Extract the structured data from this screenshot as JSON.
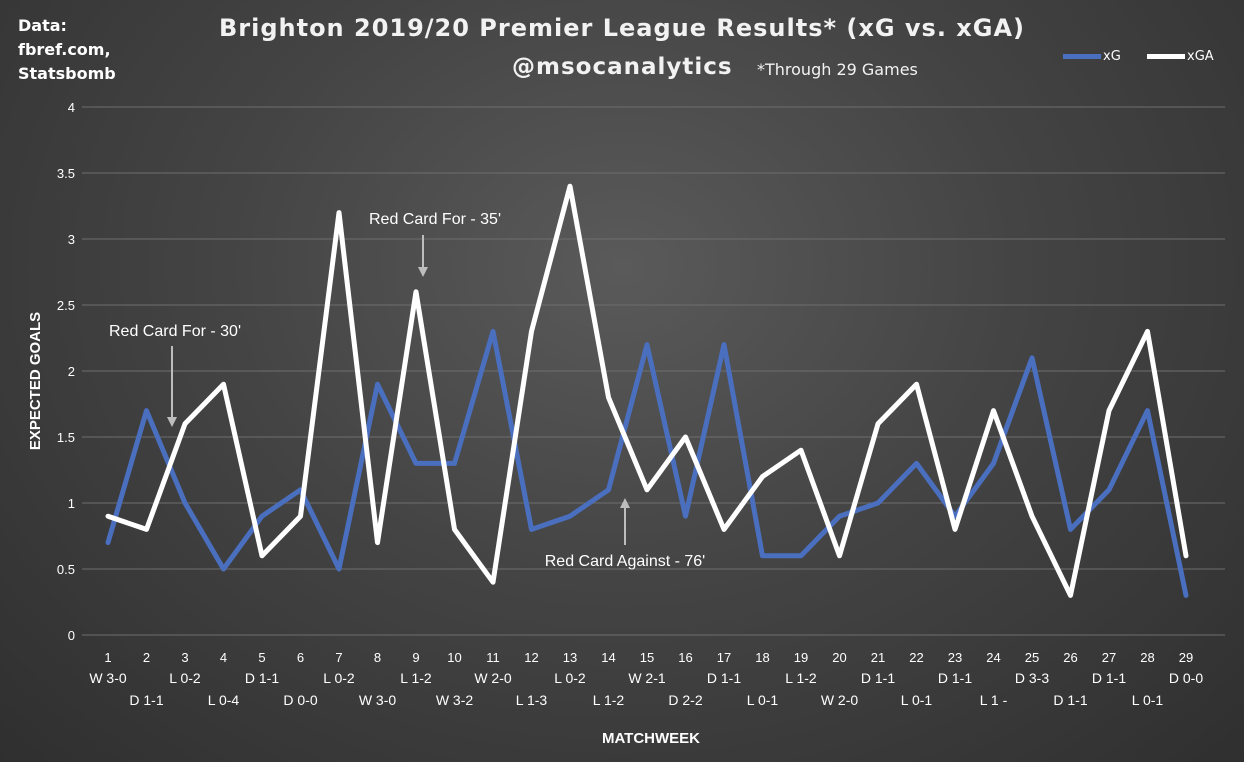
{
  "source_note": "Data:\nfbref.com,\nStatsbomb",
  "title": "Brighton 2019/20 Premier League Results* (xG vs. xGA)",
  "subtitle": "@msocanalytics",
  "note": "*Through 29 Games",
  "legend": [
    {
      "name": "xG",
      "color": "#4a6fbf"
    },
    {
      "name": "xGA",
      "color": "#ffffff"
    }
  ],
  "chart_data": {
    "type": "line",
    "title": "Brighton 2019/20 Premier League Results* (xG vs. xGA)",
    "xlabel": "MATCHWEEK",
    "ylabel": "EXPECTED GOALS",
    "ylim": [
      0,
      4
    ],
    "yticks": [
      "0",
      "0.5",
      "1",
      "1.5",
      "2",
      "2.5",
      "3",
      "3.5",
      "4"
    ],
    "grid": true,
    "legend_position": "top-right",
    "categories": [
      "1",
      "2",
      "3",
      "4",
      "5",
      "6",
      "7",
      "8",
      "9",
      "10",
      "11",
      "12",
      "13",
      "14",
      "15",
      "16",
      "17",
      "18",
      "19",
      "20",
      "21",
      "22",
      "23",
      "24",
      "25",
      "26",
      "27",
      "28",
      "29"
    ],
    "results": [
      "W 3-0",
      "D 1-1",
      "L 0-2",
      "L 0-4",
      "D 1-1",
      "D 0-0",
      "L 0-2",
      "W 3-0",
      "L 1-2",
      "W 3-2",
      "W 2-0",
      "L 1-3",
      "L 0-2",
      "L 1-2",
      "W 2-1",
      "D 2-2",
      "D 1-1",
      "L 0-1",
      "L 1-2",
      "W 2-0",
      "D 1-1",
      "L 0-1",
      "D 1-1",
      "L 1 -",
      "D 3-3",
      "D 1-1",
      "D 1-1",
      "L 0-1",
      "D 0-0"
    ],
    "series": [
      {
        "name": "xG",
        "color": "#4a6fbf",
        "values": [
          0.7,
          1.7,
          1.0,
          0.5,
          0.9,
          1.1,
          0.5,
          1.9,
          1.3,
          1.3,
          2.3,
          0.8,
          0.9,
          1.1,
          2.2,
          0.9,
          2.2,
          0.6,
          0.6,
          0.9,
          1.0,
          1.3,
          0.9,
          1.3,
          2.1,
          0.8,
          1.1,
          1.7,
          0.3
        ]
      },
      {
        "name": "xGA",
        "color": "#ffffff",
        "values": [
          0.9,
          0.8,
          1.6,
          1.9,
          0.6,
          0.9,
          3.2,
          0.7,
          2.6,
          0.8,
          0.4,
          2.3,
          3.4,
          1.8,
          1.1,
          1.5,
          0.8,
          1.2,
          1.4,
          0.6,
          1.6,
          1.9,
          0.8,
          1.7,
          0.9,
          0.3,
          1.7,
          2.3,
          0.6
        ]
      }
    ],
    "annotations": [
      {
        "text": "Red Card For - 30'",
        "matchweek": 2
      },
      {
        "text": "Red Card For - 35'",
        "matchweek": 9
      },
      {
        "text": "Red Card Against - 76'",
        "matchweek": 14
      }
    ]
  }
}
